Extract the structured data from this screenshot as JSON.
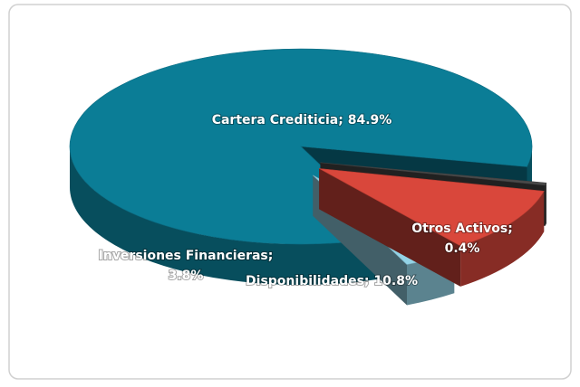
{
  "chart_data": {
    "type": "pie3d",
    "values": [
      84.9,
      0.4,
      10.8,
      3.8
    ],
    "value_labels": [
      "Cartera Crediticia; 84.9%",
      "Otros Activos; 0.4%",
      "Disponibilidades; 10.8%",
      "Inversiones Financieras; 3.8%"
    ],
    "colors": [
      "#0b7d96",
      "#4a4a4a",
      "#d9473b",
      "#93d3e6"
    ]
  }
}
